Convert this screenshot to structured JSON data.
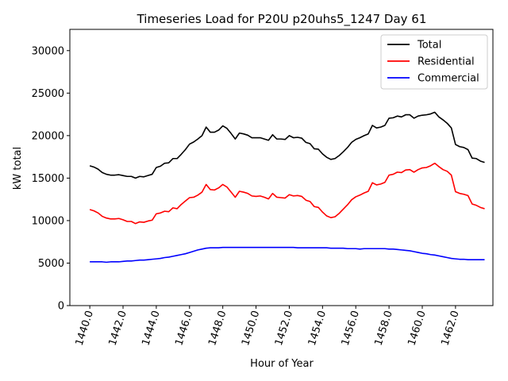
{
  "chart_data": {
    "type": "line",
    "title": "Timeseries Load for P20U p20uhs5_1247  Day 61",
    "xlabel": "Hour of Year",
    "ylabel": "kW total",
    "xlim": [
      1438.8,
      1464.25
    ],
    "ylim": [
      0,
      32500
    ],
    "xticks": [
      1440,
      1442,
      1444,
      1446,
      1448,
      1450,
      1452,
      1454,
      1456,
      1458,
      1460,
      1462
    ],
    "xtick_labels": [
      "1440.0",
      "1442.0",
      "1444.0",
      "1446.0",
      "1448.0",
      "1450.0",
      "1452.0",
      "1454.0",
      "1456.0",
      "1458.0",
      "1460.0",
      "1462.0"
    ],
    "yticks": [
      0,
      5000,
      10000,
      15000,
      20000,
      25000,
      30000
    ],
    "ytick_labels": [
      "0",
      "5000",
      "10000",
      "15000",
      "20000",
      "25000",
      "30000"
    ],
    "legend_position": "top-right",
    "x": [
      1440.0,
      1440.25,
      1440.5,
      1440.75,
      1441.0,
      1441.25,
      1441.5,
      1441.75,
      1442.0,
      1442.25,
      1442.5,
      1442.75,
      1443.0,
      1443.25,
      1443.5,
      1443.75,
      1444.0,
      1444.25,
      1444.5,
      1444.75,
      1445.0,
      1445.25,
      1445.5,
      1445.75,
      1446.0,
      1446.25,
      1446.5,
      1446.75,
      1447.0,
      1447.25,
      1447.5,
      1447.75,
      1448.0,
      1448.25,
      1448.5,
      1448.75,
      1449.0,
      1449.25,
      1449.5,
      1449.75,
      1450.0,
      1450.25,
      1450.5,
      1450.75,
      1451.0,
      1451.25,
      1451.5,
      1451.75,
      1452.0,
      1452.25,
      1452.5,
      1452.75,
      1453.0,
      1453.25,
      1453.5,
      1453.75,
      1454.0,
      1454.25,
      1454.5,
      1454.75,
      1455.0,
      1455.25,
      1455.5,
      1455.75,
      1456.0,
      1456.25,
      1456.5,
      1456.75,
      1457.0,
      1457.25,
      1457.5,
      1457.75,
      1458.0,
      1458.25,
      1458.5,
      1458.75,
      1459.0,
      1459.25,
      1459.5,
      1459.75,
      1460.0,
      1460.25,
      1460.5,
      1460.75,
      1461.0,
      1461.25,
      1461.5,
      1461.75,
      1462.0,
      1462.25,
      1462.5,
      1462.75,
      1463.0,
      1463.25,
      1463.5,
      1463.75
    ],
    "series": [
      {
        "name": "Total",
        "color": "#000000",
        "values": [
          16450,
          16300,
          16050,
          15650,
          15450,
          15350,
          15350,
          15400,
          15300,
          15200,
          15200,
          15000,
          15200,
          15150,
          15300,
          15450,
          16250,
          16400,
          16750,
          16800,
          17300,
          17300,
          17800,
          18350,
          19000,
          19250,
          19600,
          20000,
          21000,
          20400,
          20400,
          20650,
          21150,
          20850,
          20250,
          19600,
          20300,
          20200,
          20050,
          19750,
          19750,
          19750,
          19600,
          19450,
          20100,
          19600,
          19600,
          19550,
          20000,
          19750,
          19800,
          19700,
          19200,
          19050,
          18450,
          18400,
          17850,
          17450,
          17200,
          17300,
          17650,
          18100,
          18600,
          19200,
          19550,
          19750,
          20000,
          20200,
          21200,
          20900,
          21000,
          21200,
          22050,
          22100,
          22300,
          22200,
          22450,
          22450,
          22050,
          22300,
          22400,
          22450,
          22550,
          22750,
          22200,
          21850,
          21450,
          20900,
          18950,
          18700,
          18600,
          18350,
          17350,
          17300,
          17000,
          16850
        ]
      },
      {
        "name": "Residential",
        "color": "#ff0000",
        "values": [
          11300,
          11150,
          10900,
          10500,
          10300,
          10200,
          10200,
          10250,
          10100,
          9900,
          9900,
          9650,
          9850,
          9800,
          9950,
          10050,
          10800,
          10900,
          11100,
          11050,
          11500,
          11400,
          11900,
          12300,
          12700,
          12750,
          13000,
          13350,
          14250,
          13650,
          13600,
          13850,
          14250,
          13950,
          13350,
          12750,
          13450,
          13350,
          13200,
          12900,
          12850,
          12900,
          12750,
          12550,
          13200,
          12750,
          12700,
          12650,
          13050,
          12900,
          12950,
          12850,
          12400,
          12250,
          11650,
          11550,
          11000,
          10550,
          10350,
          10450,
          10850,
          11350,
          11850,
          12450,
          12800,
          13000,
          13250,
          13450,
          14450,
          14200,
          14300,
          14500,
          15350,
          15450,
          15700,
          15650,
          15950,
          16000,
          15700,
          16000,
          16200,
          16250,
          16450,
          16750,
          16350,
          16000,
          15800,
          15350,
          13400,
          13200,
          13100,
          12950,
          11950,
          11800,
          11550,
          11400
        ]
      },
      {
        "name": "Commercial",
        "color": "#0000ff",
        "values": [
          5150,
          5150,
          5150,
          5150,
          5100,
          5150,
          5150,
          5150,
          5200,
          5250,
          5250,
          5300,
          5350,
          5350,
          5400,
          5450,
          5500,
          5550,
          5650,
          5700,
          5800,
          5900,
          6000,
          6100,
          6250,
          6400,
          6550,
          6650,
          6750,
          6800,
          6800,
          6800,
          6850,
          6850,
          6850,
          6850,
          6850,
          6850,
          6850,
          6850,
          6850,
          6850,
          6850,
          6850,
          6850,
          6850,
          6850,
          6850,
          6850,
          6850,
          6800,
          6800,
          6800,
          6800,
          6800,
          6800,
          6800,
          6800,
          6750,
          6750,
          6750,
          6750,
          6700,
          6700,
          6700,
          6650,
          6700,
          6700,
          6700,
          6700,
          6700,
          6700,
          6650,
          6650,
          6600,
          6550,
          6500,
          6450,
          6350,
          6250,
          6150,
          6100,
          6000,
          5950,
          5850,
          5750,
          5650,
          5550,
          5500,
          5450,
          5450,
          5400,
          5400,
          5400,
          5400,
          5400
        ]
      }
    ]
  }
}
